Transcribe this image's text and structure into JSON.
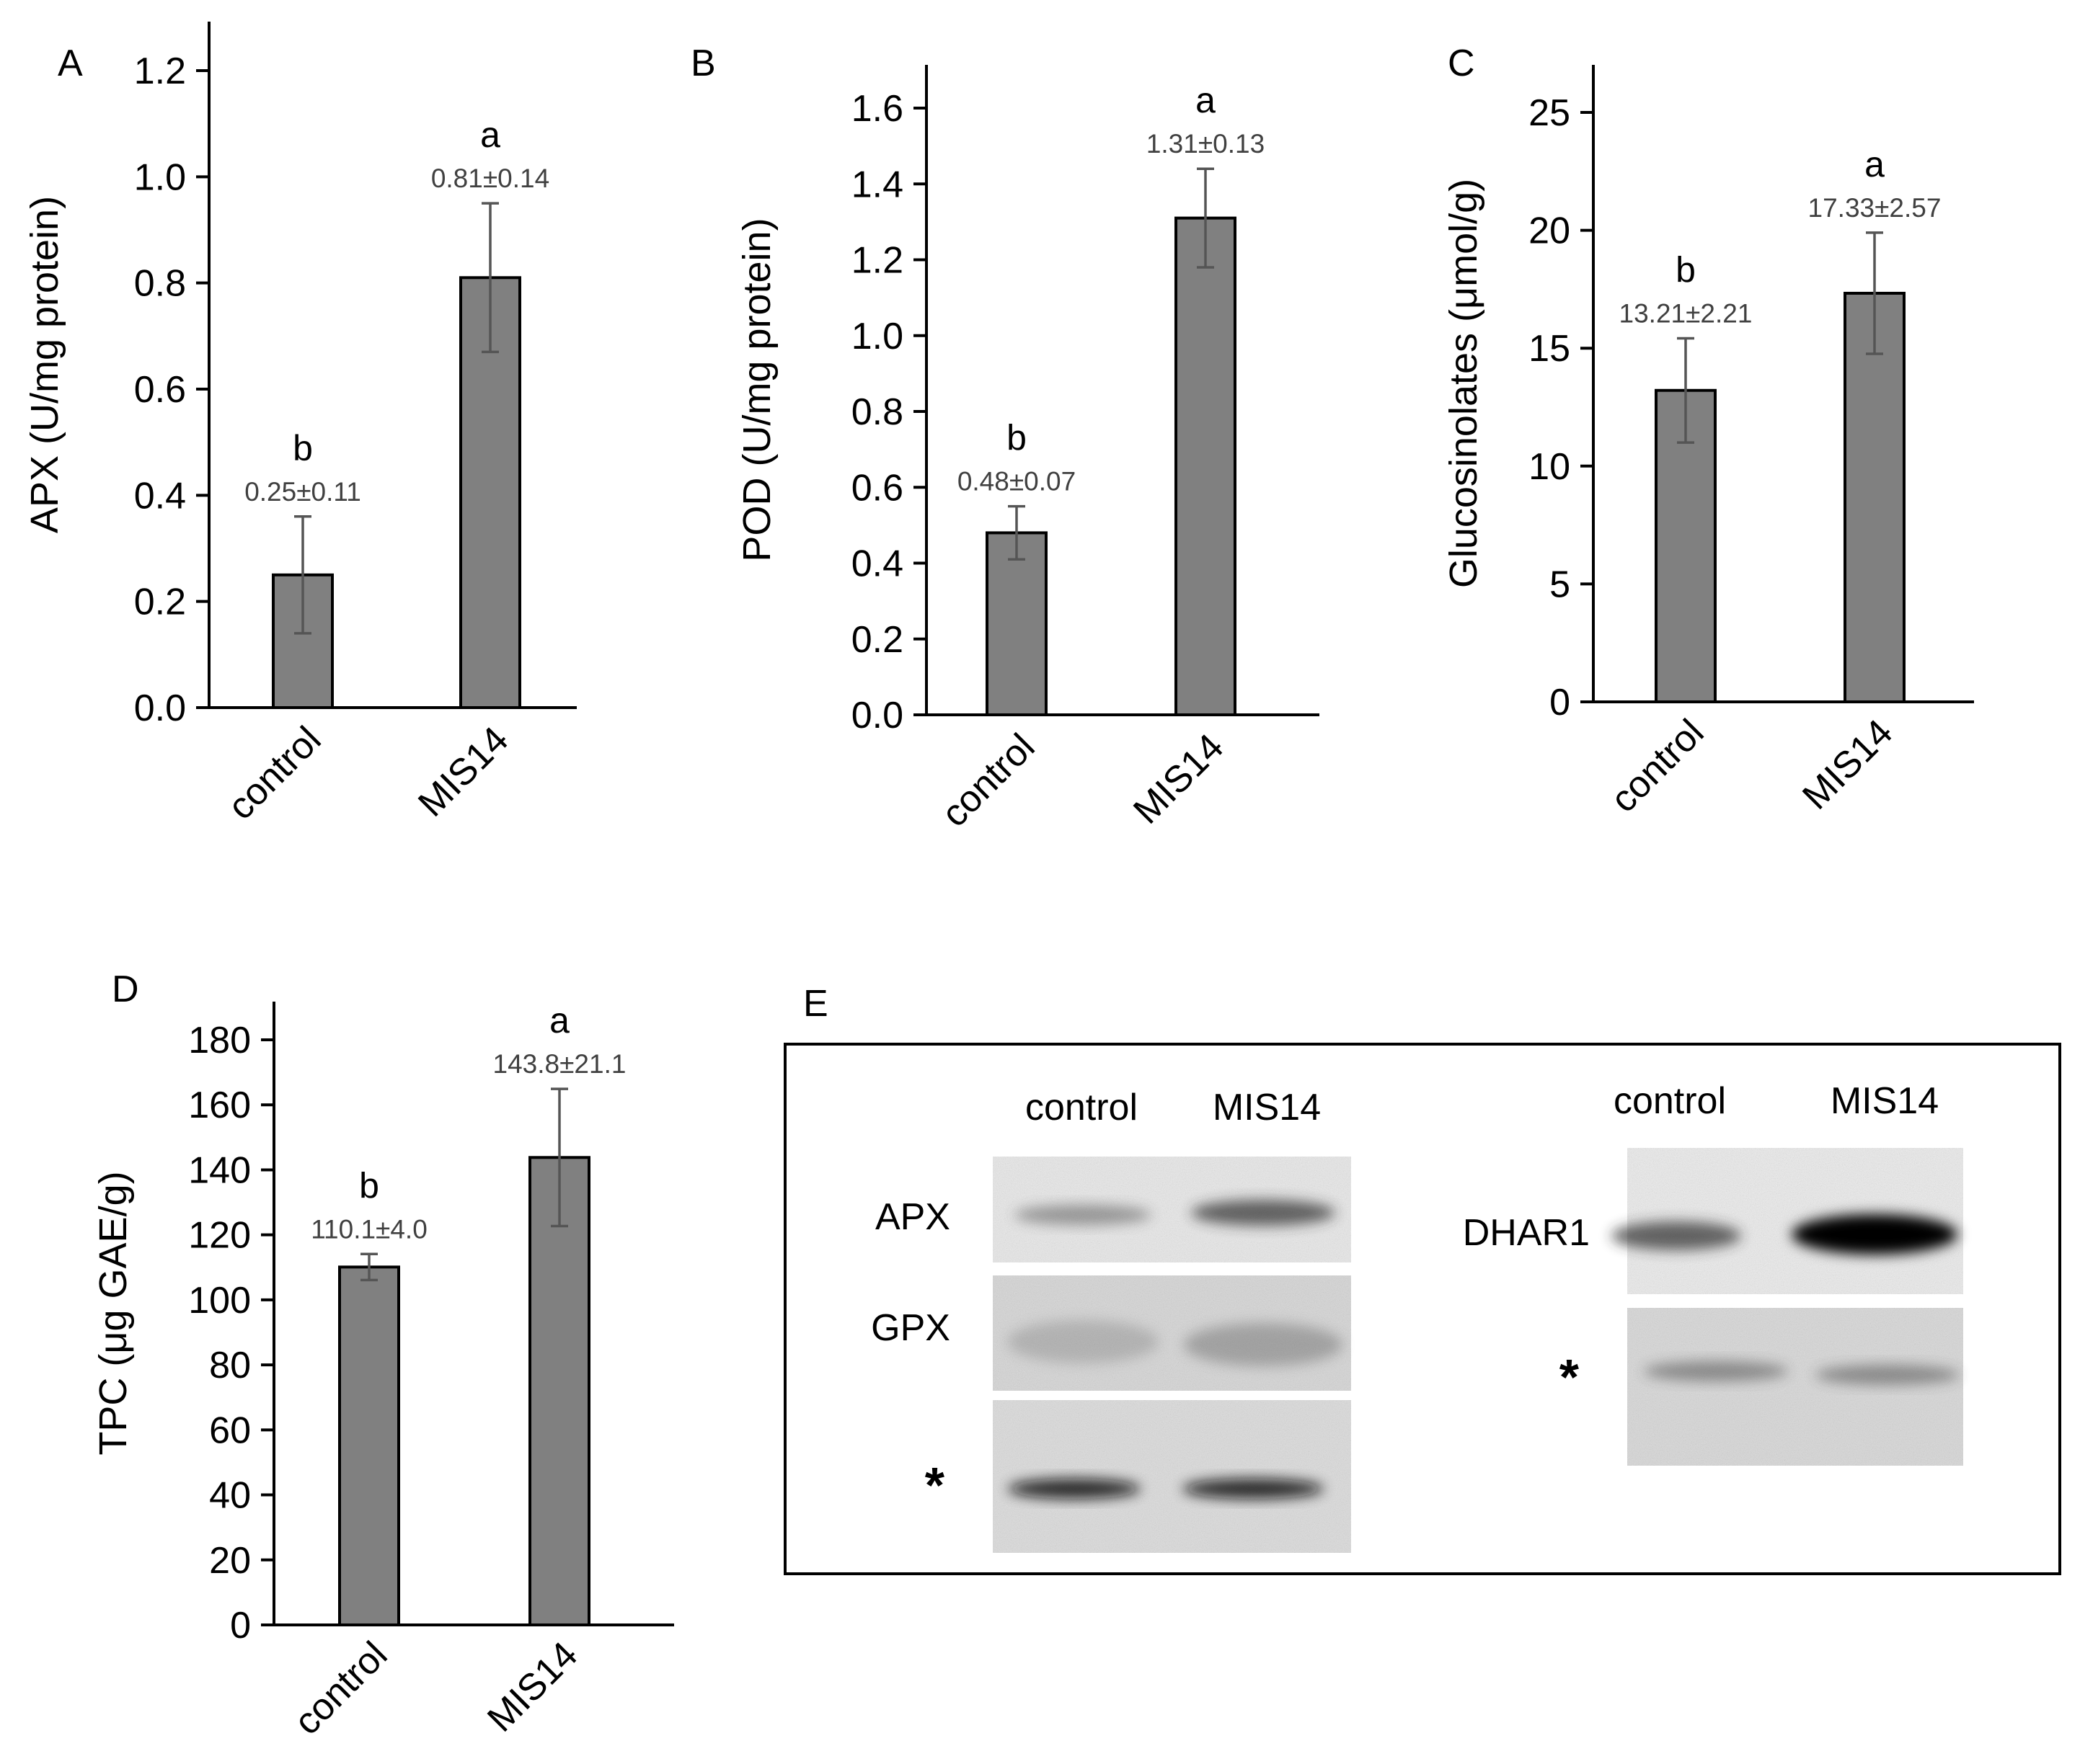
{
  "chart_data": [
    {
      "type": "bar",
      "panel": "A",
      "categories": [
        "control",
        "MIS14"
      ],
      "values": [
        0.25,
        0.81
      ],
      "errors": [
        0.11,
        0.14
      ],
      "letters": [
        "b",
        "a"
      ],
      "value_labels": [
        "0.25±0.11",
        "0.81±0.14"
      ],
      "ylabel": "APX (U/mg protein)",
      "ylim": [
        0,
        1.2
      ],
      "yticks": [
        "0.0",
        "0.2",
        "0.4",
        "0.6",
        "0.8",
        "1.0",
        "1.2"
      ]
    },
    {
      "type": "bar",
      "panel": "B",
      "categories": [
        "control",
        "MIS14"
      ],
      "values": [
        0.48,
        1.31
      ],
      "errors": [
        0.07,
        0.13
      ],
      "letters": [
        "b",
        "a"
      ],
      "value_labels": [
        "0.48±0.07",
        "1.31±0.13"
      ],
      "ylabel": "POD (U/mg protein)",
      "ylim": [
        0,
        1.6
      ],
      "yticks": [
        "0.0",
        "0.2",
        "0.4",
        "0.6",
        "0.8",
        "1.0",
        "1.2",
        "1.4",
        "1.6"
      ]
    },
    {
      "type": "bar",
      "panel": "C",
      "categories": [
        "control",
        "MIS14"
      ],
      "values": [
        13.21,
        17.33
      ],
      "errors": [
        2.21,
        2.57
      ],
      "letters": [
        "b",
        "a"
      ],
      "value_labels": [
        "13.21±2.21",
        "17.33±2.57"
      ],
      "ylabel": "Glucosinolates (μmol/g)",
      "ylim": [
        0,
        25
      ],
      "yticks": [
        "0",
        "5",
        "10",
        "15",
        "20",
        "25"
      ]
    },
    {
      "type": "bar",
      "panel": "D",
      "categories": [
        "control",
        "MIS14"
      ],
      "values": [
        110.1,
        143.8
      ],
      "errors": [
        4.0,
        21.1
      ],
      "letters": [
        "b",
        "a"
      ],
      "value_labels": [
        "110.1±4.0",
        "143.8±21.1"
      ],
      "ylabel": "TPC  (μg GAE/g)",
      "ylim": [
        0,
        180
      ],
      "yticks": [
        "0",
        "20",
        "40",
        "60",
        "80",
        "100",
        "120",
        "140",
        "160",
        "180"
      ]
    }
  ],
  "blot": {
    "panel": "E",
    "left": {
      "columns": [
        "control",
        "MIS14"
      ],
      "rows": [
        "APX",
        "GPX",
        "*"
      ],
      "band_intensity": [
        [
          0.45,
          0.7
        ],
        [
          0.25,
          0.35
        ],
        [
          0.85,
          0.85
        ]
      ]
    },
    "right": {
      "columns": [
        "control",
        "MIS14"
      ],
      "rows": [
        "DHAR1",
        "*"
      ],
      "band_intensity": [
        [
          0.7,
          1.0
        ],
        [
          0.45,
          0.45
        ]
      ]
    }
  },
  "colors": {
    "bar": "#808080",
    "error_bar": "#555555",
    "value_label": "#404040"
  }
}
